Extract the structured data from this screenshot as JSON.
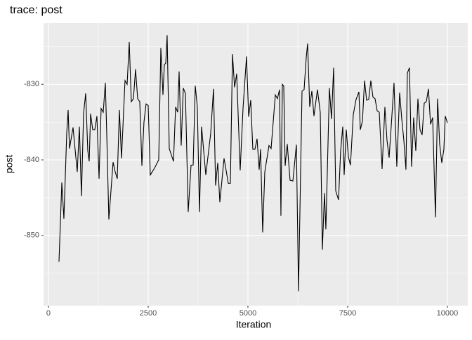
{
  "chart_data": {
    "type": "line",
    "title": "trace: post",
    "x_label": "Iteration",
    "y_label": "post",
    "x": [
      264,
      335,
      387,
      458,
      493,
      528,
      616,
      722,
      775,
      827,
      880,
      933,
      986,
      1021,
      1056,
      1109,
      1162,
      1215,
      1268,
      1320,
      1373,
      1426,
      1461,
      1514,
      1620,
      1673,
      1725,
      1778,
      1831,
      1919,
      1972,
      2025,
      2077,
      2130,
      2183,
      2236,
      2289,
      2342,
      2394,
      2447,
      2500,
      2553,
      2658,
      2764,
      2817,
      2870,
      2905,
      2940,
      2975,
      3028,
      3134,
      3187,
      3239,
      3275,
      3327,
      3380,
      3433,
      3503,
      3574,
      3627,
      3680,
      3732,
      3785,
      3838,
      3944,
      4067,
      4137,
      4190,
      4243,
      4296,
      4401,
      4454,
      4507,
      4560,
      4613,
      4665,
      4718,
      4806,
      4877,
      4965,
      5018,
      5070,
      5123,
      5176,
      5229,
      5282,
      5317,
      5370,
      5423,
      5528,
      5581,
      5687,
      5739,
      5792,
      5827,
      5863,
      5898,
      5933,
      5986,
      6056,
      6127,
      6215,
      6268,
      6356,
      6408,
      6461,
      6496,
      6549,
      6602,
      6655,
      6743,
      6813,
      6866,
      6919,
      6954,
      7042,
      7095,
      7148,
      7201,
      7271,
      7324,
      7377,
      7412,
      7465,
      7518,
      7570,
      7641,
      7711,
      7782,
      7817,
      7870,
      7923,
      7975,
      8028,
      8081,
      8134,
      8187,
      8239,
      8292,
      8363,
      8433,
      8486,
      8539,
      8591,
      8662,
      8732,
      8803,
      8856,
      8908,
      8961,
      8996,
      9049,
      9102,
      9155,
      9208,
      9261,
      9313,
      9366,
      9419,
      9472,
      9525,
      9577,
      9630,
      9701,
      9754,
      9806,
      9859,
      9912,
      9947,
      10000
    ],
    "series": [
      {
        "name": "post",
        "color": "#000000",
        "values": [
          -853.5,
          -843,
          -847.8,
          -836.5,
          -833.4,
          -838.5,
          -835.7,
          -841.6,
          -835.6,
          -844.8,
          -833.9,
          -831.2,
          -838.8,
          -840.2,
          -833.9,
          -836,
          -836,
          -834.2,
          -842.5,
          -833.2,
          -833.7,
          -829.8,
          -836.5,
          -847.9,
          -840.3,
          -841.6,
          -842.5,
          -833.4,
          -839.8,
          -829.5,
          -830,
          -824.4,
          -832.3,
          -831.9,
          -828,
          -831.9,
          -832.3,
          -840.8,
          -835,
          -832.6,
          -832.8,
          -842,
          -841.1,
          -840,
          -825.2,
          -831.4,
          -827.4,
          -827.2,
          -823.5,
          -838.5,
          -840.2,
          -833,
          -833.7,
          -828.3,
          -838.1,
          -830.5,
          -831.2,
          -846.9,
          -840.7,
          -840.7,
          -830.2,
          -833,
          -846.9,
          -835.6,
          -842,
          -836.5,
          -830.6,
          -843.4,
          -840.4,
          -845.6,
          -839.8,
          -841.4,
          -843.1,
          -843.1,
          -826,
          -830.4,
          -828.6,
          -841.4,
          -833.2,
          -826.3,
          -834.3,
          -832.1,
          -838.6,
          -838.6,
          -837.2,
          -841.3,
          -838.6,
          -849.6,
          -841.6,
          -838.1,
          -838.5,
          -831.4,
          -831.9,
          -830.7,
          -847.4,
          -830,
          -830.2,
          -840.8,
          -837.9,
          -842.7,
          -842.8,
          -838,
          -857.4,
          -830.9,
          -830.7,
          -826.5,
          -824.6,
          -833,
          -830.9,
          -834.2,
          -830.7,
          -833.7,
          -851.9,
          -844.4,
          -849.2,
          -830.5,
          -834.6,
          -827.8,
          -844.1,
          -845.3,
          -838.8,
          -835.6,
          -842,
          -836,
          -839.6,
          -840.7,
          -834,
          -832,
          -831,
          -836,
          -834.9,
          -829.5,
          -832.1,
          -832,
          -829.5,
          -831.7,
          -831.9,
          -833.5,
          -833.7,
          -841.2,
          -833,
          -837.4,
          -839.7,
          -835.6,
          -829.8,
          -840.9,
          -831.1,
          -834.6,
          -837.4,
          -841.3,
          -828.5,
          -827.8,
          -840.9,
          -834.4,
          -838.8,
          -831.9,
          -836,
          -836.7,
          -832.5,
          -832.3,
          -830.6,
          -835.3,
          -834.4,
          -847.6,
          -831.9,
          -837.9,
          -840.4,
          -838.6,
          -834.2,
          -835.1
        ]
      }
    ],
    "xlim": [
      -123,
      10511
    ],
    "xticks": [
      0,
      2500,
      5000,
      7500,
      10000
    ],
    "ylim": [
      -859.3,
      -821.9
    ],
    "yticks": [
      -850,
      -840,
      -830
    ],
    "grid": true
  }
}
